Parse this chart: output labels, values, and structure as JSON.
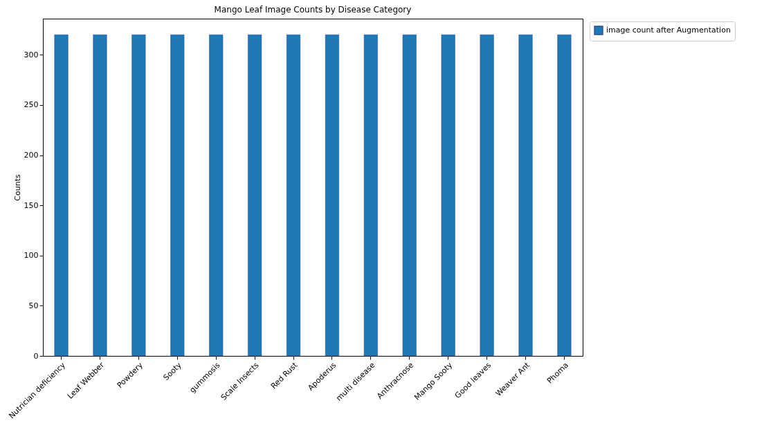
{
  "chart_data": {
    "type": "bar",
    "title": "Mango Leaf Image Counts by Disease Category",
    "ylabel": "Counts",
    "categories": [
      "Nutrician deficiency",
      "Leaf Webber",
      "Powdery",
      "Sooty",
      "gummosis",
      "Scale Insects",
      "Red Rust",
      "Apoderus",
      "multi disease",
      "Anthracnose",
      "Mango Sooty",
      "Good leaves",
      "Weaver Ant",
      "Phoma"
    ],
    "series": [
      {
        "name": "image count after Augmentation",
        "color": "#1f77b4",
        "values": [
          320,
          320,
          320,
          320,
          320,
          320,
          320,
          320,
          320,
          320,
          320,
          320,
          320,
          320
        ]
      }
    ],
    "ylim": [
      0,
      336
    ],
    "yticks": [
      0,
      50,
      100,
      150,
      200,
      250,
      300
    ],
    "grid": false,
    "legend": "top right"
  }
}
